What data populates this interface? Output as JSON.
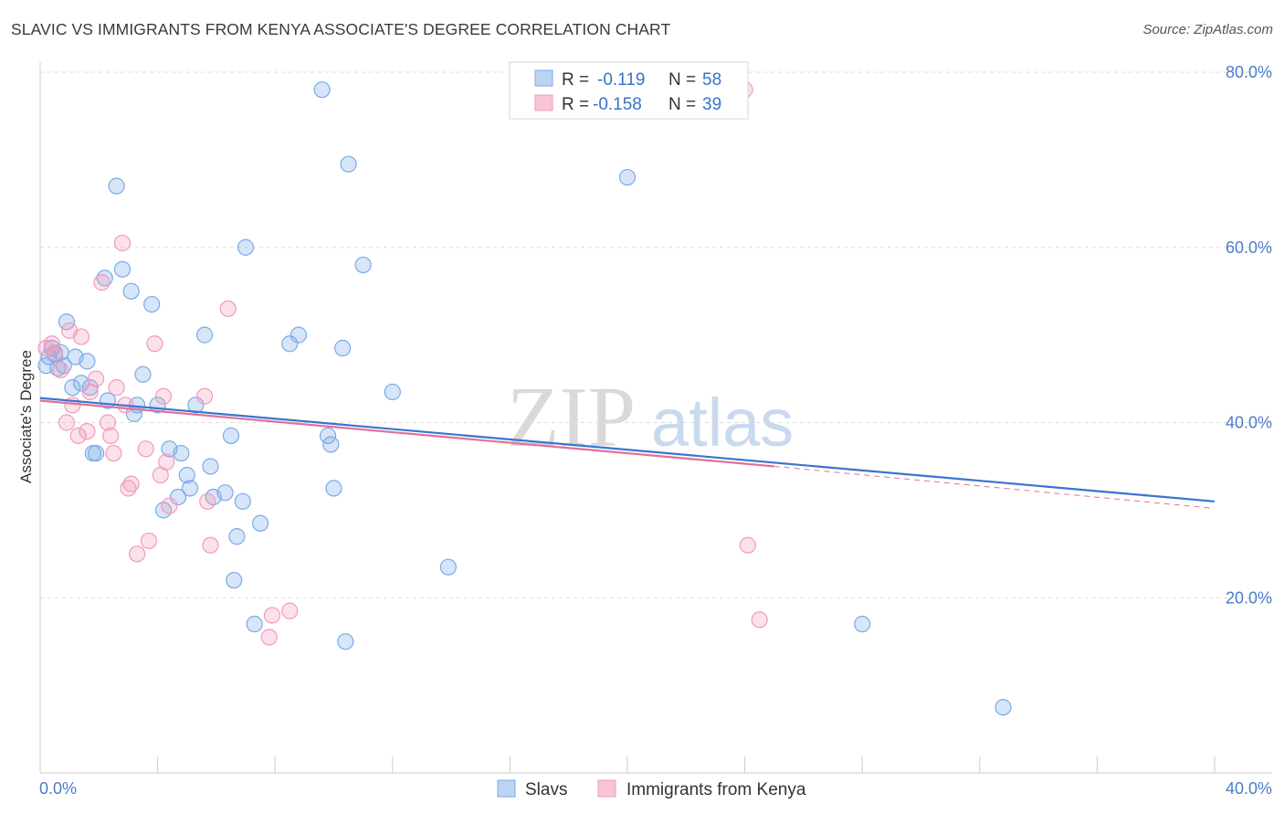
{
  "title": "SLAVIC VS IMMIGRANTS FROM KENYA ASSOCIATE'S DEGREE CORRELATION CHART",
  "source": "Source: ZipAtlas.com",
  "watermark": {
    "zip": "ZIP",
    "atlas": "atlas"
  },
  "legend": {
    "r_label": "R =",
    "n_label": "N =",
    "rows": [
      {
        "r": "-0.119",
        "n": "58"
      },
      {
        "r": "-0.158",
        "n": "39"
      }
    ]
  },
  "chart_data": {
    "type": "scatter",
    "title": "SLAVIC VS IMMIGRANTS FROM KENYA ASSOCIATE'S DEGREE CORRELATION CHART",
    "xlabel": "",
    "ylabel": "Associate's Degree",
    "xlim": [
      0,
      40
    ],
    "ylim": [
      0,
      80
    ],
    "x_ticks": [
      0,
      40
    ],
    "x_tick_labels": [
      "0.0%",
      "40.0%"
    ],
    "y_ticks": [
      20,
      40,
      60,
      80
    ],
    "y_tick_labels": [
      "20.0%",
      "40.0%",
      "60.0%",
      "80.0%"
    ],
    "grid": true,
    "legend_position": "top-center",
    "series": [
      {
        "name": "Slavs",
        "color": "#7aaae8",
        "trend": {
          "x": [
            0,
            40
          ],
          "y": [
            42.8,
            31.0
          ]
        },
        "x": [
          0.2,
          0.3,
          0.4,
          0.5,
          0.6,
          0.7,
          0.8,
          0.9,
          1.1,
          1.2,
          1.4,
          1.6,
          1.7,
          1.8,
          1.9,
          2.2,
          2.3,
          2.6,
          2.8,
          3.1,
          3.2,
          3.3,
          3.5,
          3.8,
          4.0,
          4.2,
          4.4,
          4.7,
          4.8,
          5.0,
          5.1,
          5.3,
          5.6,
          5.8,
          5.9,
          6.3,
          6.5,
          6.6,
          6.7,
          6.9,
          7.0,
          7.3,
          7.5,
          8.5,
          8.8,
          9.6,
          9.8,
          9.9,
          10.0,
          10.3,
          10.4,
          10.5,
          11.0,
          12.0,
          13.9,
          20.0,
          28.0,
          32.8
        ],
        "y": [
          46.5,
          47.5,
          48.5,
          47.8,
          46.2,
          48.0,
          46.5,
          51.5,
          44.0,
          47.5,
          44.5,
          47.0,
          44.0,
          36.5,
          36.5,
          56.5,
          42.5,
          67.0,
          57.5,
          55.0,
          41.0,
          42.0,
          45.5,
          53.5,
          42.0,
          30.0,
          37.0,
          31.5,
          36.5,
          34.0,
          32.5,
          42.0,
          50.0,
          35.0,
          31.5,
          32.0,
          38.5,
          22.0,
          27.0,
          31.0,
          60.0,
          17.0,
          28.5,
          49.0,
          50.0,
          78.0,
          38.5,
          37.5,
          32.5,
          48.5,
          15.0,
          69.5,
          58.0,
          43.5,
          23.5,
          68.0,
          17.0,
          7.5
        ]
      },
      {
        "name": "Immigrants from Kenya",
        "color": "#f29bb8",
        "trend": {
          "x": [
            0,
            25
          ],
          "y": [
            42.5,
            35.0
          ]
        },
        "trend_dashed": {
          "x": [
            25,
            40
          ],
          "y": [
            35.0,
            30.2
          ]
        },
        "x": [
          0.2,
          0.4,
          0.5,
          0.7,
          0.9,
          1.0,
          1.1,
          1.3,
          1.4,
          1.6,
          1.7,
          1.9,
          2.1,
          2.3,
          2.4,
          2.5,
          2.6,
          2.8,
          2.9,
          3.0,
          3.1,
          3.3,
          3.6,
          3.7,
          3.9,
          4.1,
          4.2,
          4.3,
          4.4,
          5.6,
          5.7,
          5.8,
          6.4,
          7.8,
          7.9,
          8.5,
          24.1,
          24.5,
          24.0
        ],
        "y": [
          48.5,
          49.0,
          48.0,
          46.0,
          40.0,
          50.5,
          42.0,
          38.5,
          49.8,
          39.0,
          43.5,
          45.0,
          56.0,
          40.0,
          38.5,
          36.5,
          44.0,
          60.5,
          42.0,
          32.5,
          33.0,
          25.0,
          37.0,
          26.5,
          49.0,
          34.0,
          43.0,
          35.5,
          30.5,
          43.0,
          31.0,
          26.0,
          53.0,
          15.5,
          18.0,
          18.5,
          26.0,
          17.5,
          78.0
        ]
      }
    ]
  }
}
